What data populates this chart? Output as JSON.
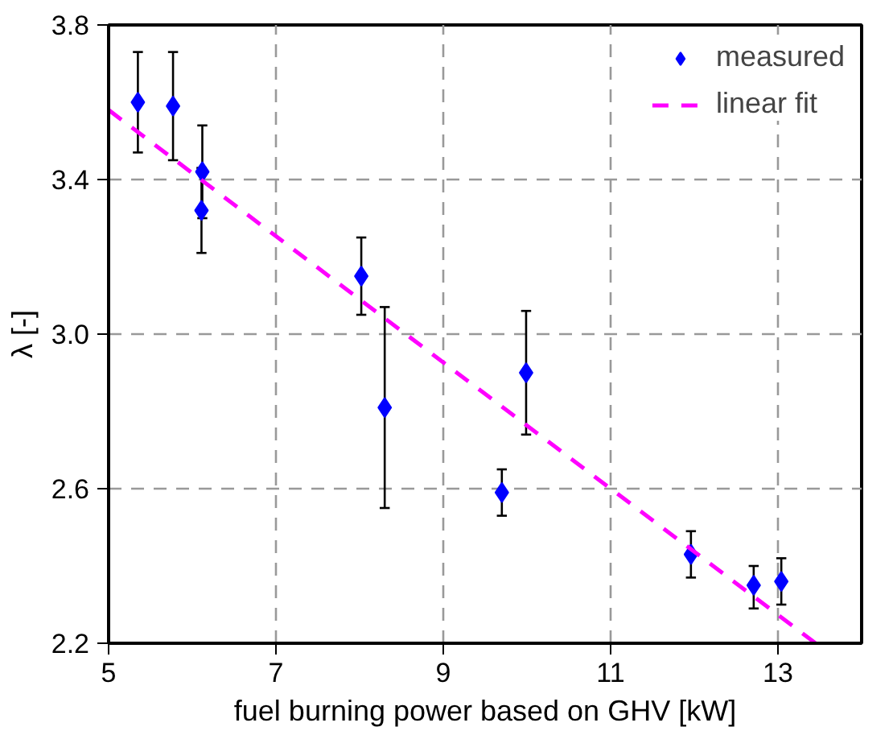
{
  "chart_data": {
    "type": "scatter",
    "xlabel": "fuel burning power based on GHV [kW]",
    "ylabel": "λ [-]",
    "xlim": [
      5,
      14
    ],
    "ylim": [
      2.2,
      3.8
    ],
    "xticks": [
      5,
      7,
      9,
      11,
      13
    ],
    "yticks": [
      {
        "value": 2.2,
        "label": "2.2"
      },
      {
        "value": 2.6,
        "label": "2.6"
      },
      {
        "value": 3.0,
        "label": "3.0"
      },
      {
        "value": 3.4,
        "label": "3.4"
      },
      {
        "value": 3.8,
        "label": "3.8"
      }
    ],
    "grid": true,
    "legend": "top right",
    "series": [
      {
        "name": "measured",
        "color": "#0000ff",
        "marker": "diamond",
        "x": [
          5.35,
          5.77,
          6.12,
          6.11,
          8.02,
          8.3,
          9.7,
          9.99,
          11.96,
          12.71,
          13.04
        ],
        "values": [
          3.6,
          3.59,
          3.42,
          3.32,
          3.15,
          2.81,
          2.59,
          2.9,
          2.43,
          2.35,
          2.36
        ],
        "errors": [
          [
            3.47,
            3.73
          ],
          [
            3.45,
            3.73
          ],
          [
            3.3,
            3.54
          ],
          [
            3.21,
            3.43
          ],
          [
            3.05,
            3.25
          ],
          [
            2.55,
            3.07
          ],
          [
            2.53,
            2.65
          ],
          [
            2.74,
            3.06
          ],
          [
            2.37,
            2.49
          ],
          [
            2.29,
            2.4
          ],
          [
            2.3,
            2.42
          ]
        ]
      },
      {
        "name": "linear fit",
        "type": "line",
        "color": "#ff00ff",
        "line_style": "dashed",
        "x": [
          5,
          13.45
        ],
        "values": [
          3.58,
          2.2
        ]
      }
    ]
  }
}
